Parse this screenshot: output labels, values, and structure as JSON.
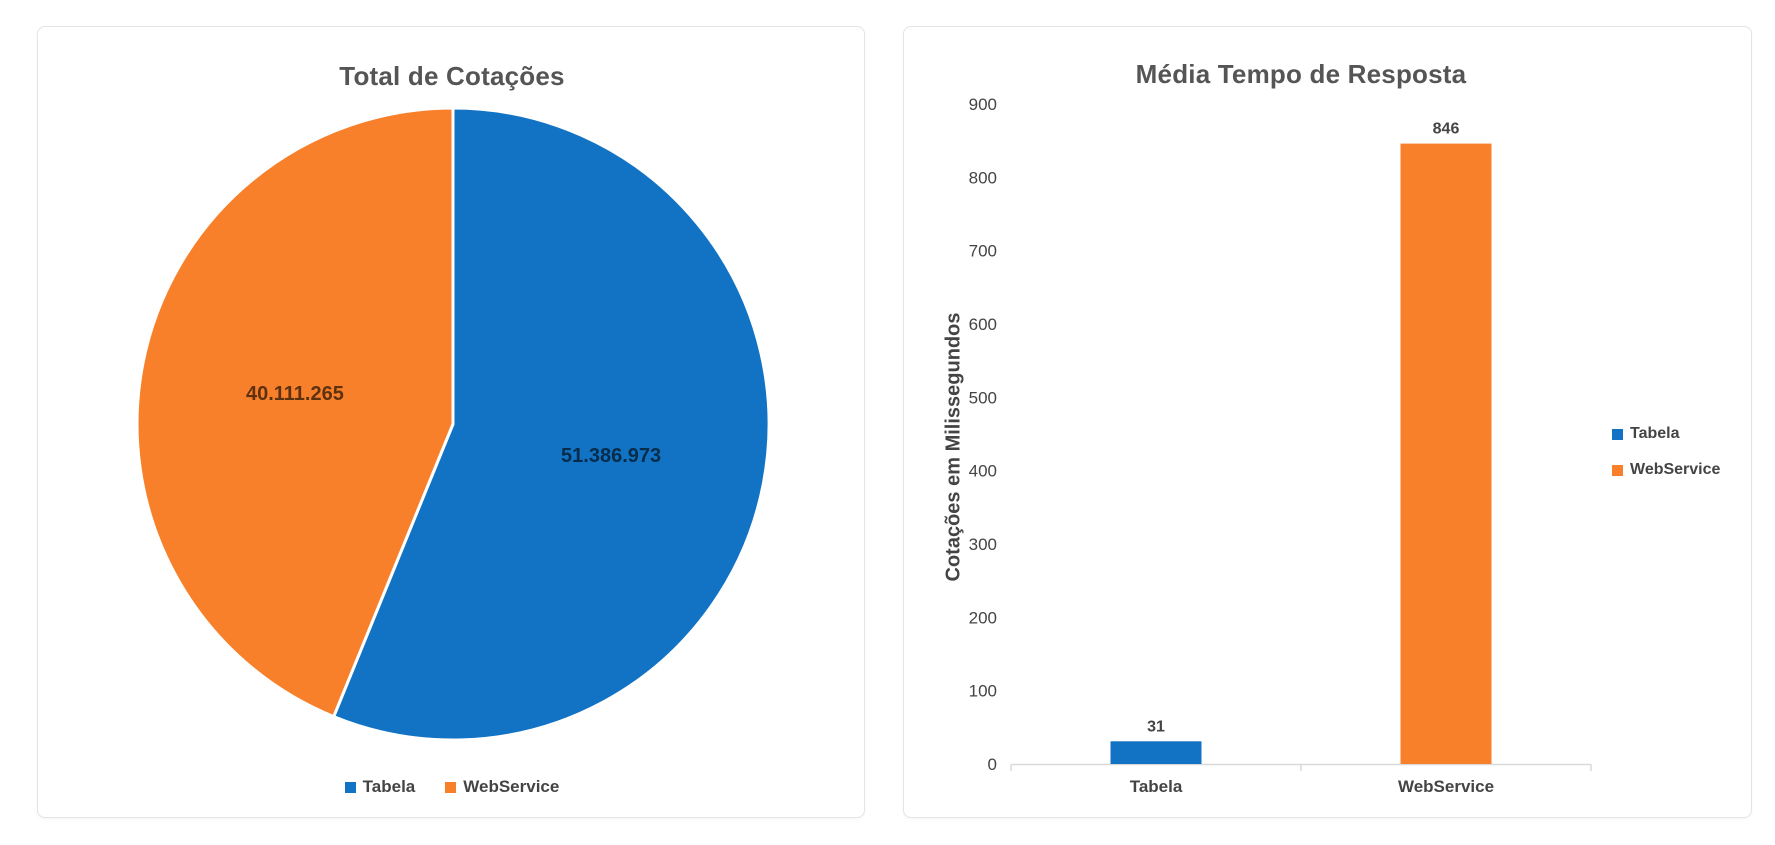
{
  "app": {
    "background": "#ffffff"
  },
  "colors": {
    "series_tabela": "#1273C4",
    "series_webservice": "#F8802A",
    "title_text": "#555555",
    "axis_text": "#444444",
    "axis_line": "#D9D9D9",
    "card_border": "#E4E4E4",
    "card_background": "#FFFFFF"
  },
  "chart_data": [
    {
      "type": "pie",
      "title": "Total de Cotações",
      "legend_position": "bottom",
      "direction": "clockwise",
      "start_angle_deg": 0,
      "series": [
        {
          "name": "Tabela",
          "value": 51386973,
          "label": "51.386.973",
          "color": "#1273C4"
        },
        {
          "name": "WebService",
          "value": 40111265,
          "label": "40.111.265",
          "color": "#F8802A"
        }
      ]
    },
    {
      "type": "bar",
      "title": "Média Tempo de Resposta",
      "ylabel": "Cotações em Milissegundos",
      "xlabel": "",
      "ylim": [
        0,
        900
      ],
      "ytick_step": 100,
      "grid": false,
      "legend_position": "right",
      "categories": [
        "Tabela",
        "WebService"
      ],
      "values": [
        31,
        846
      ],
      "value_labels": [
        "31",
        "846"
      ],
      "series_colors": [
        "#1273C4",
        "#F8802A"
      ],
      "legend": [
        "Tabela",
        "WebService"
      ]
    }
  ]
}
